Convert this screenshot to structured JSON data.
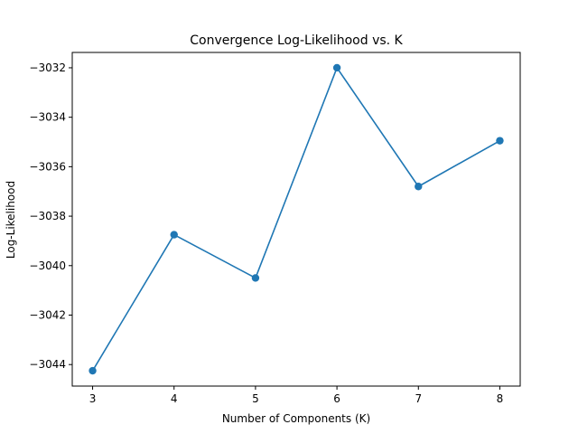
{
  "chart_data": {
    "type": "line",
    "title": "Convergence Log-Likelihood vs. K",
    "xlabel": "Number of Components (K)",
    "ylabel": "Log-Likelihood",
    "x": [
      3,
      4,
      5,
      6,
      7,
      8
    ],
    "series": [
      {
        "values": [
          -3044.25,
          -3038.75,
          -3040.5,
          -3032.0,
          -3036.8,
          -3034.95
        ],
        "color": "#1f77b4",
        "marker": "circle"
      }
    ],
    "xlim": [
      2.75,
      8.25
    ],
    "ylim": [
      -3044.87,
      -3031.38
    ],
    "xticks": [
      "3",
      "4",
      "5",
      "6",
      "7",
      "8"
    ],
    "yticks": [
      "−3044",
      "−3042",
      "−3040",
      "−3038",
      "−3036",
      "−3034",
      "−3032"
    ],
    "grid": false
  }
}
